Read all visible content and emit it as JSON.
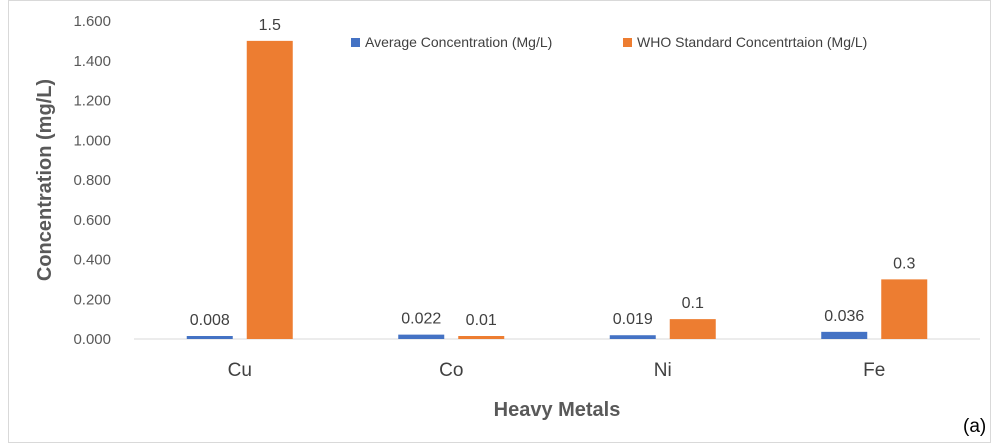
{
  "chart_data": {
    "type": "bar",
    "categories": [
      "Cu",
      "Co",
      "Ni",
      "Fe"
    ],
    "series": [
      {
        "name": "Average Concentration (Mg/L)",
        "values": [
          0.008,
          0.022,
          0.019,
          0.036
        ],
        "labels": [
          "0.008",
          "0.022",
          "0.019",
          "0.036"
        ],
        "color": "#4472C4"
      },
      {
        "name": "WHO Standard Concentrtaion (Mg/L)",
        "values": [
          1.5,
          0.01,
          0.1,
          0.3
        ],
        "labels": [
          "1.5",
          "0.01",
          "0.1",
          "0.3"
        ],
        "color": "#ED7D31"
      }
    ],
    "xlabel": "Heavy Metals",
    "ylabel": "Concentration (mg/L)",
    "ylim": [
      0,
      1.6
    ],
    "yticks": [
      "0.000",
      "0.200",
      "0.400",
      "0.600",
      "0.800",
      "1.000",
      "1.200",
      "1.400",
      "1.600"
    ],
    "grid": false,
    "legend_position": "top-right",
    "panel_label": "(a)"
  }
}
